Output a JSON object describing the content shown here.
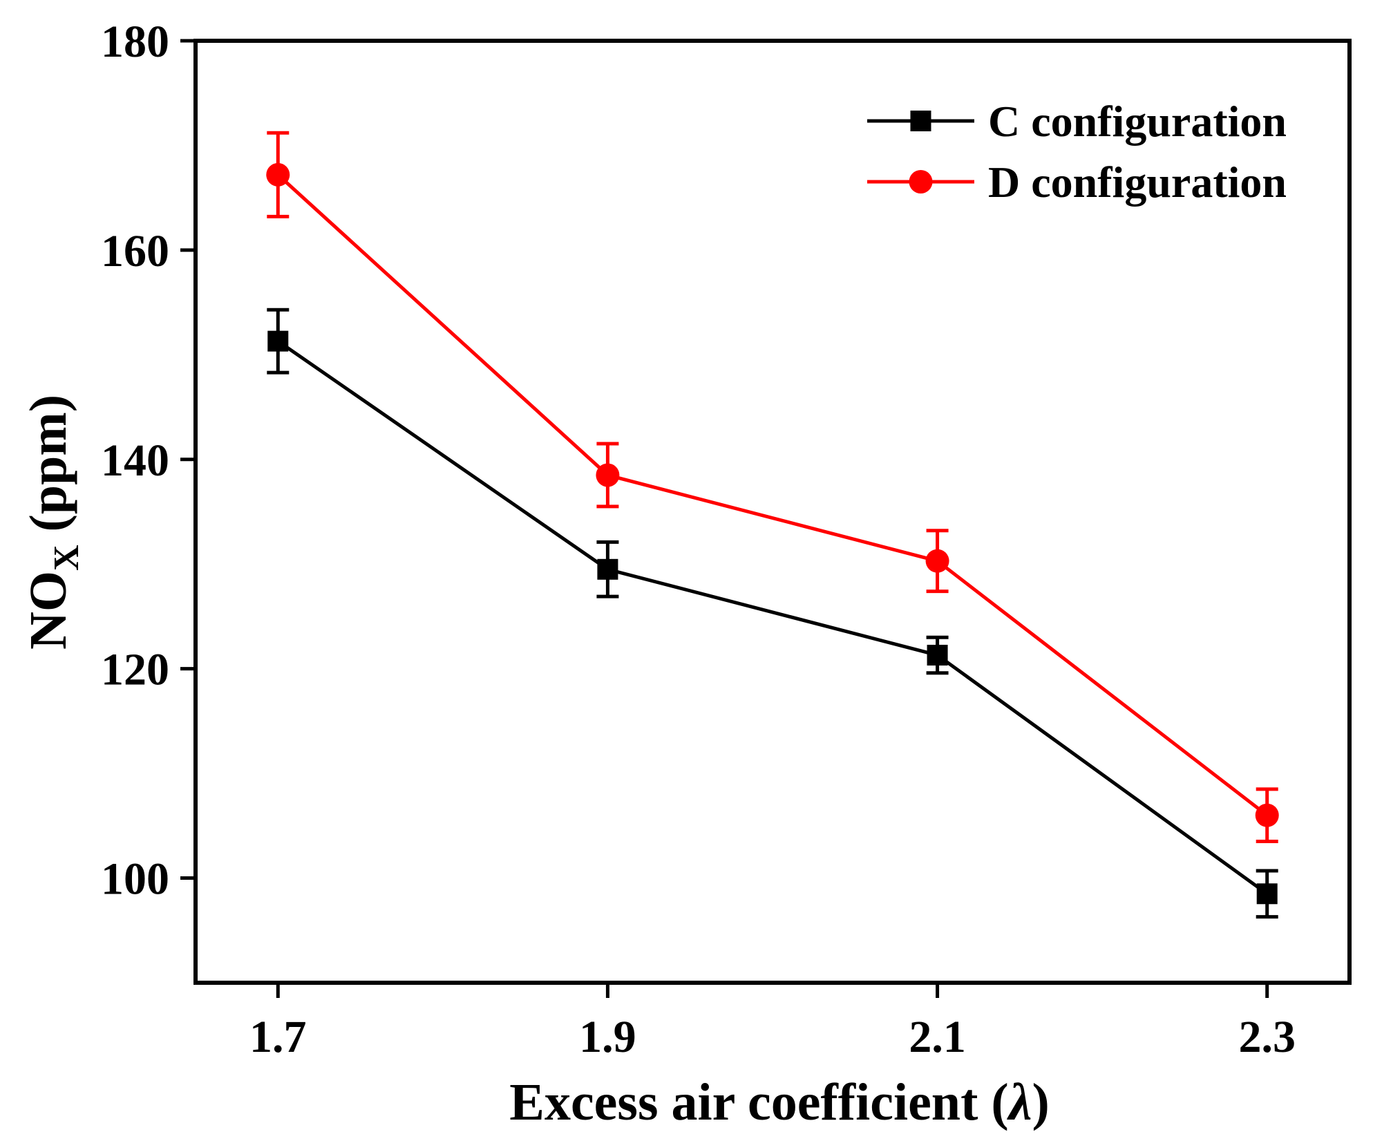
{
  "chart_data": {
    "type": "line",
    "title": "",
    "xlabel": "Excess air coefficient (",
    "xlabel_symbol": "λ",
    "xlabel_close": ")",
    "ylabel_main": "NO",
    "ylabel_sub": "X",
    "ylabel_unit": " (ppm)",
    "x": [
      1.7,
      1.9,
      2.1,
      2.3
    ],
    "x_tick_labels": [
      "1.7",
      "1.9",
      "2.1",
      "2.3"
    ],
    "y_ticks": [
      100,
      120,
      140,
      160,
      180
    ],
    "y_tick_labels": [
      "100",
      "120",
      "140",
      "160",
      "180"
    ],
    "xlim": [
      1.65,
      2.35
    ],
    "ylim": [
      90,
      180
    ],
    "series": [
      {
        "name": "C configuration",
        "color": "#000000",
        "marker": "square",
        "values": [
          151.3,
          129.5,
          121.3,
          98.5
        ],
        "errors": [
          3.0,
          2.6,
          1.7,
          2.2
        ]
      },
      {
        "name": "D configuration",
        "color": "#ff0000",
        "marker": "circle",
        "values": [
          167.2,
          138.5,
          130.3,
          106.0
        ],
        "errors": [
          4.0,
          3.0,
          2.9,
          2.5
        ]
      }
    ],
    "legend_position": "top-right"
  }
}
